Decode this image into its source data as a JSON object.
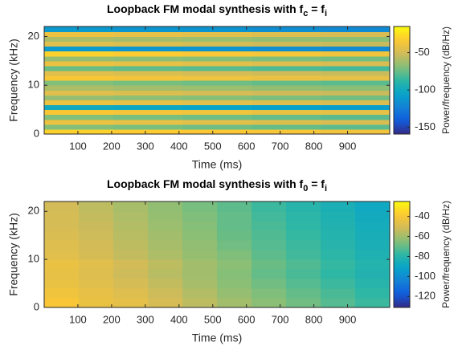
{
  "chart_data": [
    {
      "type": "heatmap",
      "colormap": "parula",
      "title": [
        "Loopback FM modal synthesis with f",
        "c",
        " = f",
        "i"
      ],
      "xlabel": "Time (ms)",
      "ylabel": "Frequency (kHz)",
      "colorbar_label": "Power/frequency (dB/Hz)",
      "x_edges": [
        0,
        205,
        410,
        615,
        820,
        1025
      ],
      "y_edges": [
        0,
        1,
        2,
        3,
        4,
        5,
        6,
        7,
        8,
        9,
        10,
        11,
        12,
        13,
        14,
        15,
        16,
        17,
        18,
        19,
        20,
        21,
        22.05
      ],
      "z": [
        [
          -30,
          -32,
          -34,
          -36,
          -38
        ],
        [
          -70,
          -72,
          -74,
          -76,
          -78
        ],
        [
          -40,
          -42,
          -44,
          -46,
          -48
        ],
        [
          -70,
          -72,
          -74,
          -76,
          -78
        ],
        [
          -35,
          -37,
          -39,
          -41,
          -43
        ],
        [
          -100,
          -102,
          -104,
          -106,
          -108
        ],
        [
          -40,
          -42,
          -44,
          -46,
          -48
        ],
        [
          -65,
          -67,
          -69,
          -71,
          -73
        ],
        [
          -45,
          -47,
          -49,
          -51,
          -53
        ],
        [
          -60,
          -62,
          -64,
          -66,
          -68
        ],
        [
          -70,
          -72,
          -74,
          -76,
          -78
        ],
        [
          -35,
          -37,
          -39,
          -41,
          -43
        ],
        [
          -45,
          -47,
          -49,
          -51,
          -53
        ],
        [
          -75,
          -77,
          -79,
          -81,
          -83
        ],
        [
          -40,
          -42,
          -44,
          -46,
          -48
        ],
        [
          -65,
          -67,
          -69,
          -71,
          -73
        ],
        [
          -30,
          -32,
          -34,
          -36,
          -38
        ],
        [
          -110,
          -112,
          -114,
          -116,
          -118
        ],
        [
          -45,
          -47,
          -49,
          -51,
          -53
        ],
        [
          -60,
          -62,
          -64,
          -66,
          -68
        ],
        [
          -40,
          -42,
          -44,
          -46,
          -48
        ],
        [
          -110,
          -112,
          -114,
          -116,
          -118
        ]
      ],
      "xlim": [
        0,
        1025
      ],
      "ylim": [
        0,
        22.05
      ],
      "xticks": [
        100,
        200,
        300,
        400,
        500,
        600,
        700,
        800,
        900
      ],
      "yticks": [
        0,
        10,
        20
      ],
      "clim": [
        -159,
        -15
      ],
      "cticks": [
        -150,
        -100,
        -50
      ]
    },
    {
      "type": "heatmap",
      "colormap": "parula",
      "title": [
        "Loopback FM modal synthesis with f",
        "0",
        " = f",
        "i"
      ],
      "xlabel": "Time (ms)",
      "ylabel": "Frequency (kHz)",
      "colorbar_label": "Power/frequency (dB/Hz)",
      "x_edges": [
        0,
        102.5,
        205,
        307.5,
        410,
        512.5,
        615,
        717.5,
        820,
        922.5,
        1025
      ],
      "y_edges": [
        0,
        2,
        4,
        6,
        8,
        10,
        12,
        14,
        16,
        18,
        20,
        22.05
      ],
      "z": [
        [
          -40,
          -44,
          -46,
          -50,
          -55,
          -60,
          -64,
          -68,
          -72,
          -76
        ],
        [
          -42,
          -45,
          -48,
          -52,
          -57,
          -62,
          -66,
          -70,
          -74,
          -78
        ],
        [
          -44,
          -47,
          -50,
          -54,
          -59,
          -64,
          -68,
          -72,
          -76,
          -80
        ],
        [
          -45,
          -48,
          -52,
          -56,
          -60,
          -65,
          -70,
          -74,
          -78,
          -82
        ],
        [
          -44,
          -47,
          -51,
          -55,
          -60,
          -64,
          -69,
          -73,
          -77,
          -81
        ],
        [
          -47,
          -50,
          -54,
          -58,
          -62,
          -66,
          -71,
          -75,
          -79,
          -83
        ],
        [
          -48,
          -51,
          -55,
          -59,
          -63,
          -68,
          -72,
          -76,
          -80,
          -84
        ],
        [
          -49,
          -52,
          -56,
          -60,
          -64,
          -69,
          -73,
          -77,
          -81,
          -85
        ],
        [
          -50,
          -53,
          -57,
          -61,
          -65,
          -70,
          -74,
          -78,
          -82,
          -86
        ],
        [
          -50,
          -54,
          -58,
          -62,
          -66,
          -70,
          -75,
          -79,
          -83,
          -87
        ],
        [
          -51,
          -55,
          -59,
          -63,
          -67,
          -71,
          -76,
          -80,
          -84,
          -88
        ]
      ],
      "xlim": [
        0,
        1025
      ],
      "ylim": [
        0,
        22.05
      ],
      "xticks": [
        100,
        200,
        300,
        400,
        500,
        600,
        700,
        800,
        900
      ],
      "yticks": [
        0,
        10,
        20
      ],
      "clim": [
        -131,
        -25
      ],
      "cticks": [
        -120,
        -100,
        -80,
        -60,
        -40
      ]
    }
  ]
}
